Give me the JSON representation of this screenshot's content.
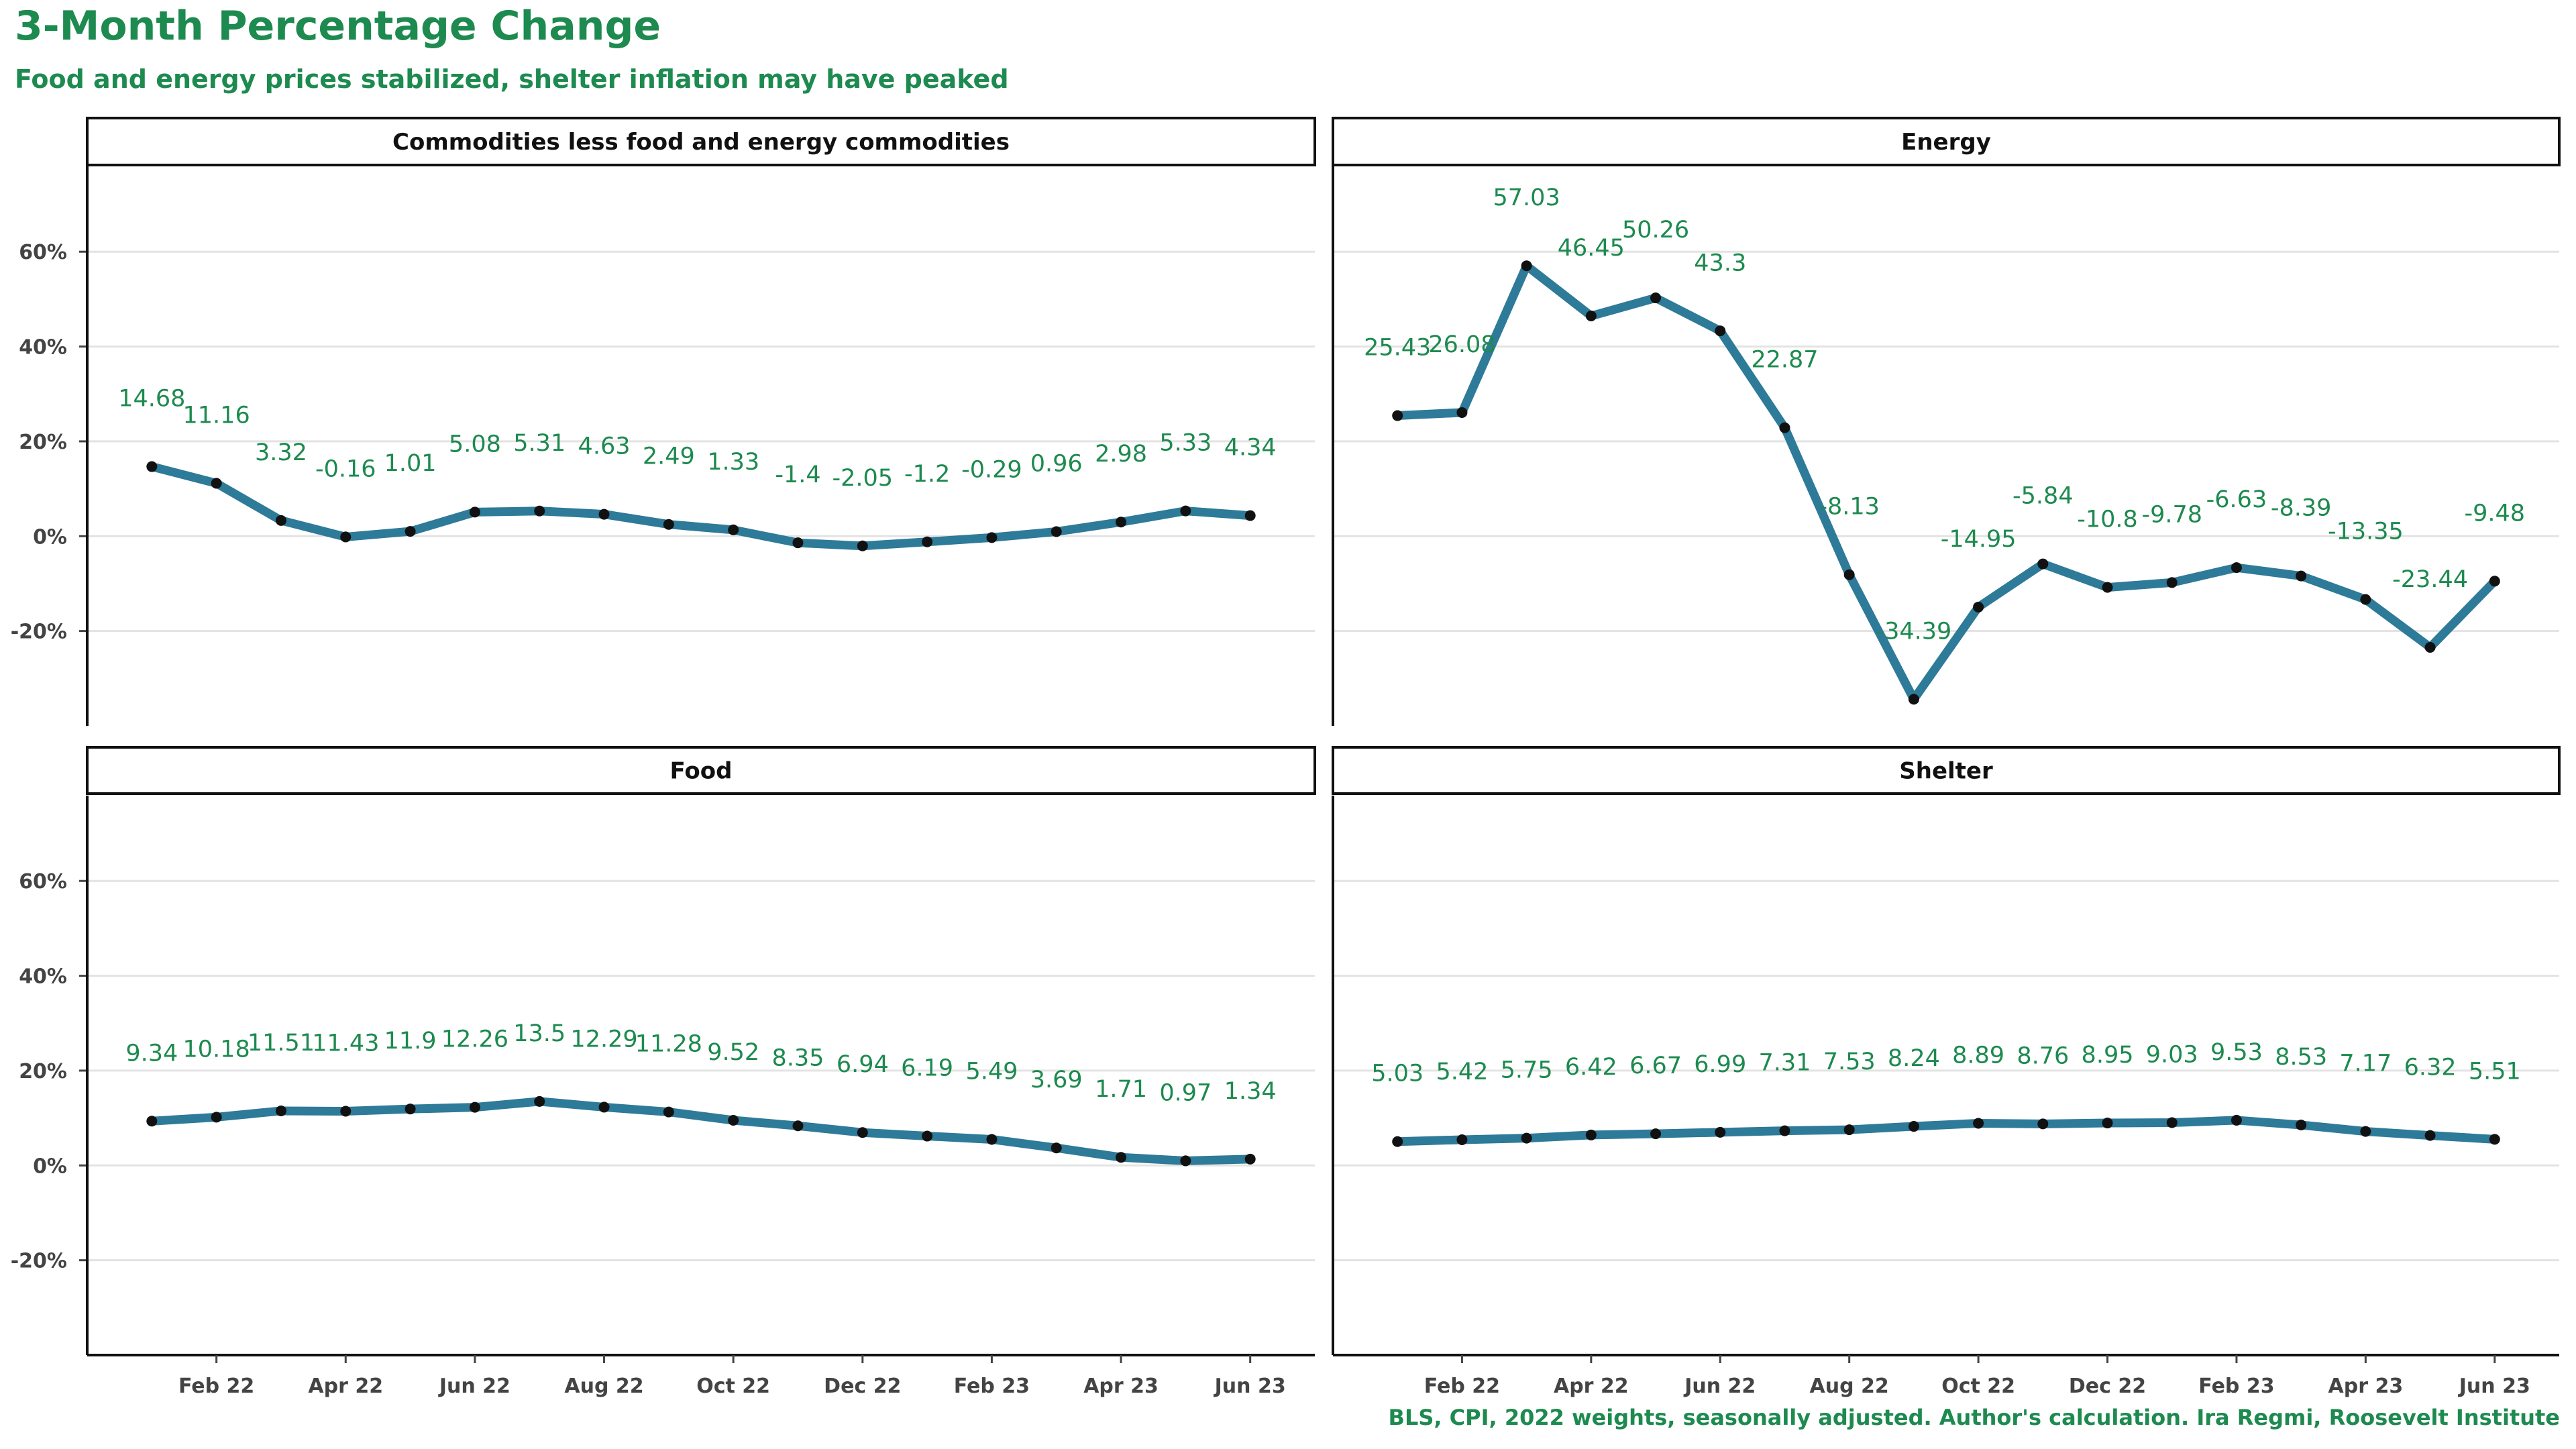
{
  "title": "3-Month Percentage Change",
  "subtitle": "Food and energy prices stabilized, shelter inflation may have peaked",
  "caption": "BLS, CPI, 2022 weights, seasonally adjusted. Author's calculation. Ira Regmi, Roosevelt Institute",
  "colors": {
    "line": "#2e7a99",
    "point": "#111111",
    "label": "#1d8a4f",
    "grid": "#e3e3e3",
    "title": "#1d8a4f"
  },
  "chart_data": {
    "type": "line",
    "layout": "facet-2x2",
    "y_ticks": [
      -20,
      0,
      20,
      40,
      60
    ],
    "y_tick_labels": [
      "-20%",
      "0%",
      "20%",
      "40%",
      "60%"
    ],
    "ylim": [
      -40,
      78
    ],
    "x_ticks": [
      "2022-02",
      "2022-04",
      "2022-06",
      "2022-08",
      "2022-10",
      "2022-12",
      "2023-02",
      "2023-04",
      "2023-06"
    ],
    "x_tick_labels": [
      "Feb 22",
      "Apr 22",
      "Jun 22",
      "Aug 22",
      "Oct 22",
      "Dec 22",
      "Feb 23",
      "Apr 23",
      "Jun 23"
    ],
    "x": [
      "2022-01",
      "2022-02",
      "2022-03",
      "2022-04",
      "2022-05",
      "2022-06",
      "2022-07",
      "2022-08",
      "2022-09",
      "2022-10",
      "2022-11",
      "2022-12",
      "2023-01",
      "2023-02",
      "2023-03",
      "2023-04",
      "2023-05",
      "2023-06"
    ],
    "xlim": [
      "2021-12",
      "2023-07"
    ],
    "grid": "horizontal",
    "facets": [
      {
        "name": "Commodities less food and energy commodities",
        "values": [
          14.68,
          11.16,
          3.32,
          -0.16,
          1.01,
          5.08,
          5.31,
          4.63,
          2.49,
          1.33,
          -1.4,
          -2.05,
          -1.2,
          -0.29,
          0.96,
          2.98,
          5.33,
          4.34
        ],
        "labels": [
          "14.68",
          "11.16",
          "3.32",
          "-0.16",
          "1.01",
          "5.08",
          "5.31",
          "4.63",
          "2.49",
          "1.33",
          "-1.4",
          "-2.05",
          "-1.2",
          "-0.29",
          "0.96",
          "2.98",
          "5.33",
          "4.34"
        ]
      },
      {
        "name": "Energy",
        "values": [
          25.43,
          26.08,
          57.03,
          46.45,
          50.26,
          43.3,
          22.87,
          -8.13,
          -34.39,
          -14.95,
          -5.84,
          -10.8,
          -9.78,
          -6.63,
          -8.39,
          -13.35,
          -23.44,
          -9.48
        ],
        "labels": [
          "25.43",
          "26.08",
          "57.03",
          "46.45",
          "50.26",
          "43.3",
          "22.87",
          "-8.13",
          "-34.39",
          "-14.95",
          "-5.84",
          "-10.8",
          "-9.78",
          "-6.63",
          "-8.39",
          "-13.35",
          "-23.44",
          "-9.48"
        ]
      },
      {
        "name": "Food",
        "values": [
          9.34,
          10.18,
          11.51,
          11.43,
          11.9,
          12.26,
          13.5,
          12.29,
          11.28,
          9.52,
          8.35,
          6.94,
          6.19,
          5.49,
          3.69,
          1.71,
          0.97,
          1.34
        ],
        "labels": [
          "9.34",
          "10.18",
          "11.51",
          "11.43",
          "11.9",
          "12.26",
          "13.5",
          "12.29",
          "11.28",
          "9.52",
          "8.35",
          "6.94",
          "6.19",
          "5.49",
          "3.69",
          "1.71",
          "0.97",
          "1.34"
        ]
      },
      {
        "name": "Shelter",
        "values": [
          5.03,
          5.42,
          5.75,
          6.42,
          6.67,
          6.99,
          7.31,
          7.53,
          8.24,
          8.89,
          8.76,
          8.95,
          9.03,
          9.53,
          8.53,
          7.17,
          6.32,
          5.51
        ],
        "labels": [
          "5.03",
          "5.42",
          "5.75",
          "6.42",
          "6.67",
          "6.99",
          "7.31",
          "7.53",
          "8.24",
          "8.89",
          "8.76",
          "8.95",
          "9.03",
          "9.53",
          "8.53",
          "7.17",
          "6.32",
          "5.51"
        ]
      }
    ]
  }
}
